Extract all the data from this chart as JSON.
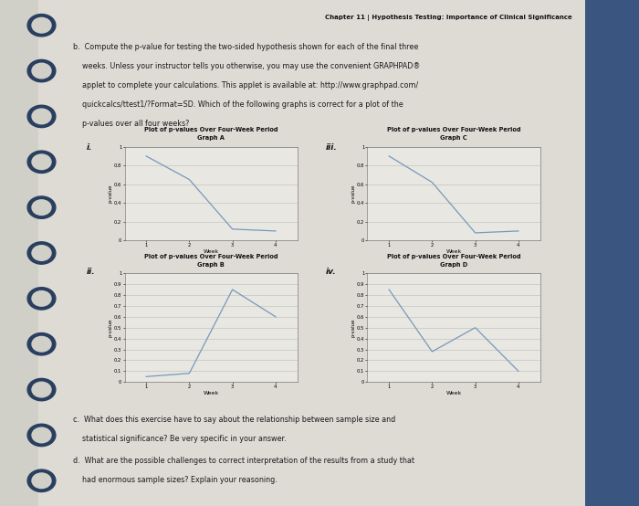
{
  "header": "Chapter 11 | Hypothesis Testing: Importance of Clinical Significance",
  "graphs": {
    "A": {
      "label": "i.",
      "title1": "Plot of p-values Over Four-Week Period",
      "title2": "Graph A",
      "x": [
        1,
        2,
        3,
        4
      ],
      "y": [
        0.9,
        0.65,
        0.12,
        0.1
      ],
      "ylim": [
        0,
        1
      ],
      "yticks": [
        0,
        0.2,
        0.4,
        0.6,
        0.8,
        1
      ],
      "xticks": [
        1,
        2,
        3,
        4
      ]
    },
    "B": {
      "label": "ii.",
      "title1": "Plot of p-values Over Four-Week Period",
      "title2": "Graph B",
      "x": [
        1,
        2,
        3,
        4
      ],
      "y": [
        0.05,
        0.08,
        0.85,
        0.6
      ],
      "ylim": [
        0,
        1
      ],
      "yticks": [
        0,
        0.1,
        0.2,
        0.3,
        0.4,
        0.5,
        0.6,
        0.7,
        0.8,
        0.9,
        1
      ],
      "xticks": [
        1,
        2,
        3,
        4
      ]
    },
    "C": {
      "label": "iii.",
      "title1": "Plot of p-values Over Four-Week Period",
      "title2": "Graph C",
      "x": [
        1,
        2,
        3,
        4
      ],
      "y": [
        0.9,
        0.62,
        0.08,
        0.1
      ],
      "ylim": [
        0,
        1
      ],
      "yticks": [
        0,
        0.2,
        0.4,
        0.6,
        0.8,
        1
      ],
      "xticks": [
        1,
        2,
        3,
        4
      ]
    },
    "D": {
      "label": "iv.",
      "title1": "Plot of p-values Over Four-Week Period",
      "title2": "Graph D",
      "x": [
        1,
        2,
        3,
        4
      ],
      "y": [
        0.85,
        0.28,
        0.5,
        0.1
      ],
      "ylim": [
        0,
        1
      ],
      "yticks": [
        0,
        0.1,
        0.2,
        0.3,
        0.4,
        0.5,
        0.6,
        0.7,
        0.8,
        0.9,
        1
      ],
      "xticks": [
        1,
        2,
        3,
        4
      ]
    }
  },
  "line_color": "#7799bb",
  "page_bg": "#d0cfc8",
  "paper_bg": "#dddbd4",
  "grid_color": "#bbbbbb",
  "plot_bg": "#e8e7e2",
  "spiral_color": "#3a5580",
  "blue_edge": "#3a5580",
  "text_color": "#1a1a1a"
}
